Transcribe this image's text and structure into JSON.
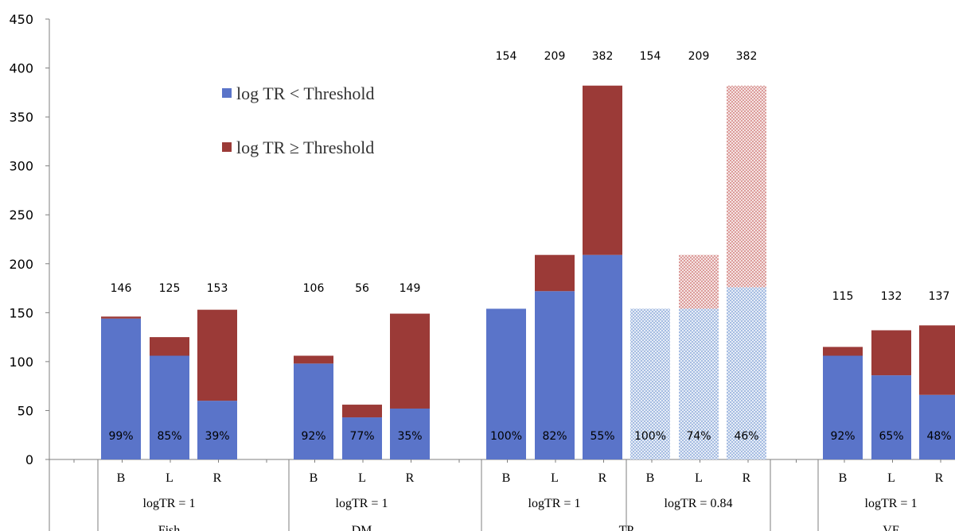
{
  "chart_data": {
    "type": "bar",
    "stacked": true,
    "ylim": [
      0,
      450
    ],
    "yticks": [
      0,
      50,
      100,
      150,
      200,
      250,
      300,
      350,
      400,
      450
    ],
    "grid": false,
    "legend_position": "top-left",
    "colors": {
      "below": "#5a74c9",
      "above": "#9b3a37",
      "below_light": "#c7d6ec",
      "above_light": "#e8b7b5"
    },
    "series": [
      {
        "name": "log TR < Threshold",
        "color": "#5a74c9"
      },
      {
        "name": "log TR ≥ Threshold",
        "color": "#9b3a37"
      }
    ],
    "bars": [
      {
        "category": "B",
        "below": 144,
        "above": 2,
        "total": "146",
        "pct": "99%",
        "hatched": false
      },
      {
        "category": "L",
        "below": 106,
        "above": 19,
        "total": "125",
        "pct": "85%",
        "hatched": false
      },
      {
        "category": "R",
        "below": 60,
        "above": 93,
        "total": "153",
        "pct": "39%",
        "hatched": false
      },
      {
        "category": "B",
        "below": 98,
        "above": 8,
        "total": "106",
        "pct": "92%",
        "hatched": false
      },
      {
        "category": "L",
        "below": 43,
        "above": 13,
        "total": "56",
        "pct": "77%",
        "hatched": false
      },
      {
        "category": "R",
        "below": 52,
        "above": 97,
        "total": "149",
        "pct": "35%",
        "hatched": false
      },
      {
        "category": "B",
        "below": 154,
        "above": 0,
        "total": "154",
        "pct": "100%",
        "hatched": false
      },
      {
        "category": "L",
        "below": 172,
        "above": 37,
        "total": "209",
        "pct": "82%",
        "hatched": false
      },
      {
        "category": "R",
        "below": 209,
        "above": 173,
        "total": "382",
        "pct": "55%",
        "hatched": false
      },
      {
        "category": "B",
        "below": 154,
        "above": 0,
        "total": "154",
        "pct": "100%",
        "hatched": true
      },
      {
        "category": "L",
        "below": 154,
        "above": 55,
        "total": "209",
        "pct": "74%",
        "hatched": true
      },
      {
        "category": "R",
        "below": 176,
        "above": 206,
        "total": "382",
        "pct": "46%",
        "hatched": true
      },
      {
        "category": "B",
        "below": 106,
        "above": 9,
        "total": "115",
        "pct": "92%",
        "hatched": false
      },
      {
        "category": "L",
        "below": 86,
        "above": 46,
        "total": "132",
        "pct": "65%",
        "hatched": false
      },
      {
        "category": "R",
        "below": 66,
        "above": 71,
        "total": "137",
        "pct": "48%",
        "hatched": false
      }
    ],
    "thresholds": [
      {
        "label": "logTR = 1",
        "bars": [
          0,
          2
        ]
      },
      {
        "label": "logTR = 1",
        "bars": [
          3,
          5
        ]
      },
      {
        "label": "logTR = 1",
        "bars": [
          6,
          8
        ]
      },
      {
        "label": "logTR = 0.84",
        "bars": [
          9,
          11
        ]
      },
      {
        "label": "logTR = 1",
        "bars": [
          12,
          14
        ]
      }
    ],
    "groups": [
      {
        "label": "Fish",
        "bars": [
          0,
          2
        ]
      },
      {
        "label": "DM",
        "bars": [
          3,
          5
        ]
      },
      {
        "label": "TP",
        "bars": [
          6,
          11
        ]
      },
      {
        "label": "VF",
        "bars": [
          12,
          14
        ]
      }
    ]
  }
}
